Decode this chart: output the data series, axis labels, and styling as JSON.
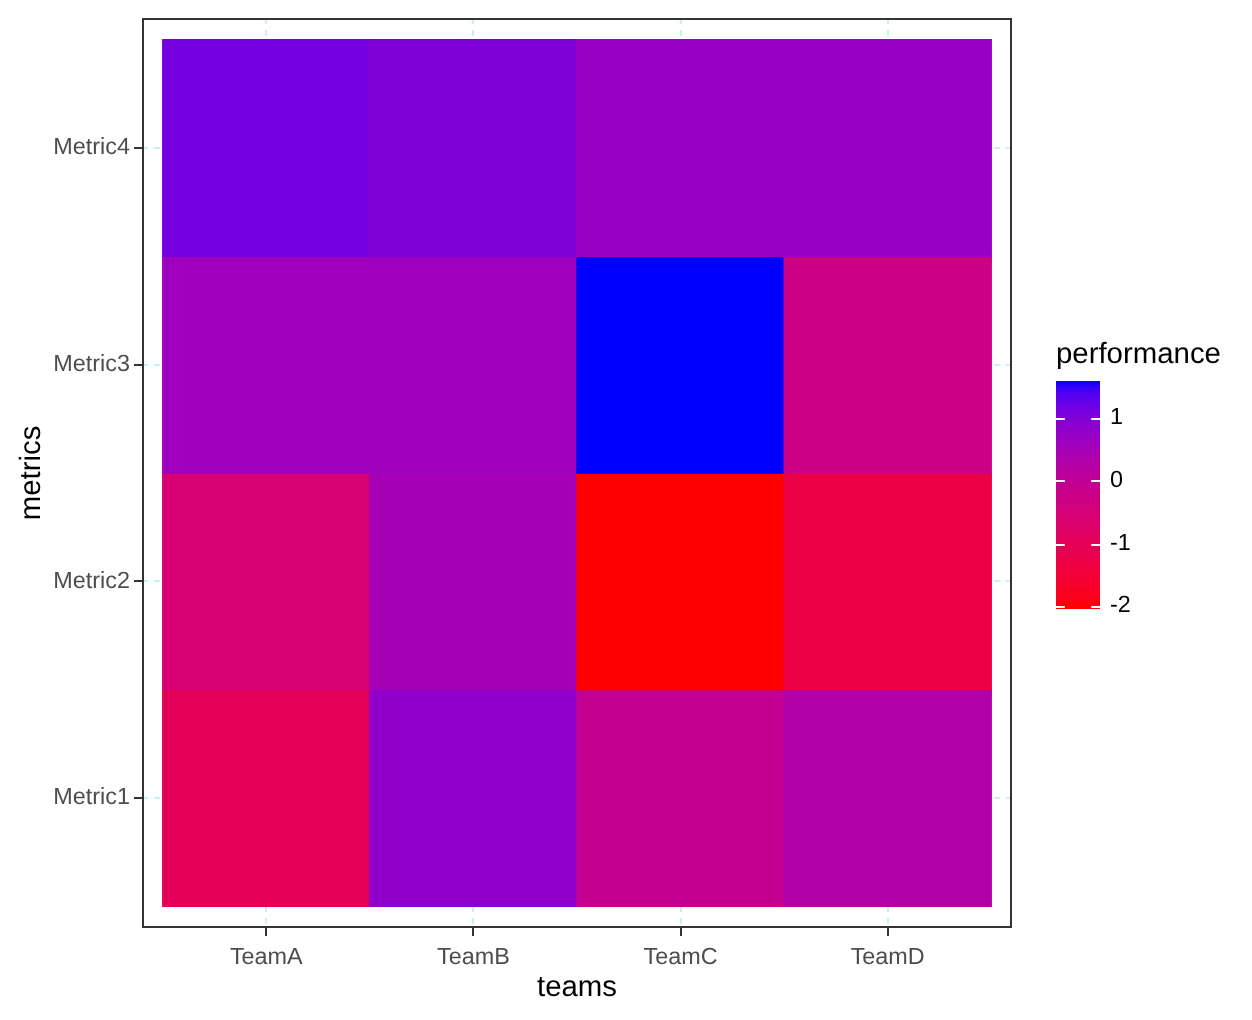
{
  "chart_data": {
    "type": "heatmap",
    "xlabel": "teams",
    "ylabel": "metrics",
    "clabel": "performance",
    "categories": [
      "TeamA",
      "TeamB",
      "TeamC",
      "TeamD"
    ],
    "y_categories": [
      "Metric4",
      "Metric3",
      "Metric2",
      "Metric1"
    ],
    "cells": [
      [
        1.1,
        1.0,
        0.7,
        0.7
      ],
      [
        0.6,
        0.6,
        1.58,
        -0.3
      ],
      [
        -0.6,
        0.5,
        -2.05,
        -1.3
      ],
      [
        -1.0,
        0.8,
        -0.1,
        0.3
      ]
    ],
    "clim": [
      -2.05,
      1.58
    ],
    "cticks": [
      -2,
      -1,
      0,
      1
    ],
    "colors": [
      "#ff0000",
      "#0000ff"
    ],
    "grid": true
  }
}
